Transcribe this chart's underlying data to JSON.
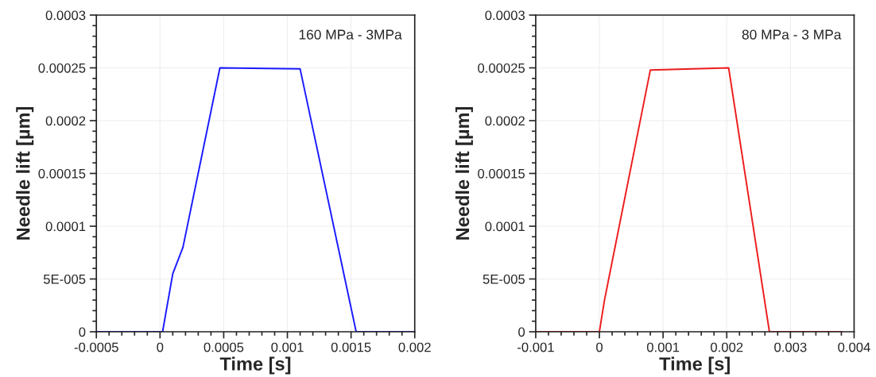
{
  "chart_data": [
    {
      "type": "line",
      "xlabel": "Time [s]",
      "ylabel": "Needle lift [µm]",
      "annotations": [
        "160 MPa - 3MPa"
      ],
      "series": [
        {
          "color": "#1a1aff",
          "x": [
            -0.0005,
            0,
            2e-05,
            0.0001,
            0.00018,
            0.00047,
            0.0011,
            0.00154,
            0.002
          ],
          "values": [
            0,
            0,
            0,
            5.5e-05,
            8e-05,
            0.00025,
            0.000249,
            0,
            0
          ]
        }
      ],
      "xlim": [
        -0.0005,
        0.002
      ],
      "xticks": [
        -0.0005,
        0,
        0.0005,
        0.001,
        0.0015,
        0.002
      ],
      "ylim": [
        0,
        0.0003
      ],
      "yticks": [
        0,
        {
          "value": 5e-05,
          "label": "5E-005"
        },
        0.0001,
        0.00015,
        0.0002,
        0.00025,
        0.0003
      ],
      "grid": true,
      "line_style": "solid",
      "marker": "none"
    },
    {
      "type": "line",
      "xlabel": "Time [s]",
      "ylabel": "Needle lift [µm]",
      "annotations": [
        "80 MPa - 3 MPa"
      ],
      "series": [
        {
          "color": "#ee1c1c",
          "x": [
            -0.001,
            0,
            8e-05,
            0.0008,
            0.00203,
            0.00267,
            0.0038
          ],
          "values": [
            0,
            0,
            3e-05,
            0.000248,
            0.00025,
            0,
            0
          ]
        }
      ],
      "xlim": [
        -0.001,
        0.004
      ],
      "xticks": [
        -0.001,
        0,
        0.001,
        0.002,
        0.003,
        0.004
      ],
      "ylim": [
        0,
        0.0003
      ],
      "yticks": [
        0,
        {
          "value": 5e-05,
          "label": "5E-005"
        },
        0.0001,
        0.00015,
        0.0002,
        0.00025,
        0.0003
      ],
      "grid": true,
      "line_style": "solid",
      "marker": "none"
    }
  ]
}
